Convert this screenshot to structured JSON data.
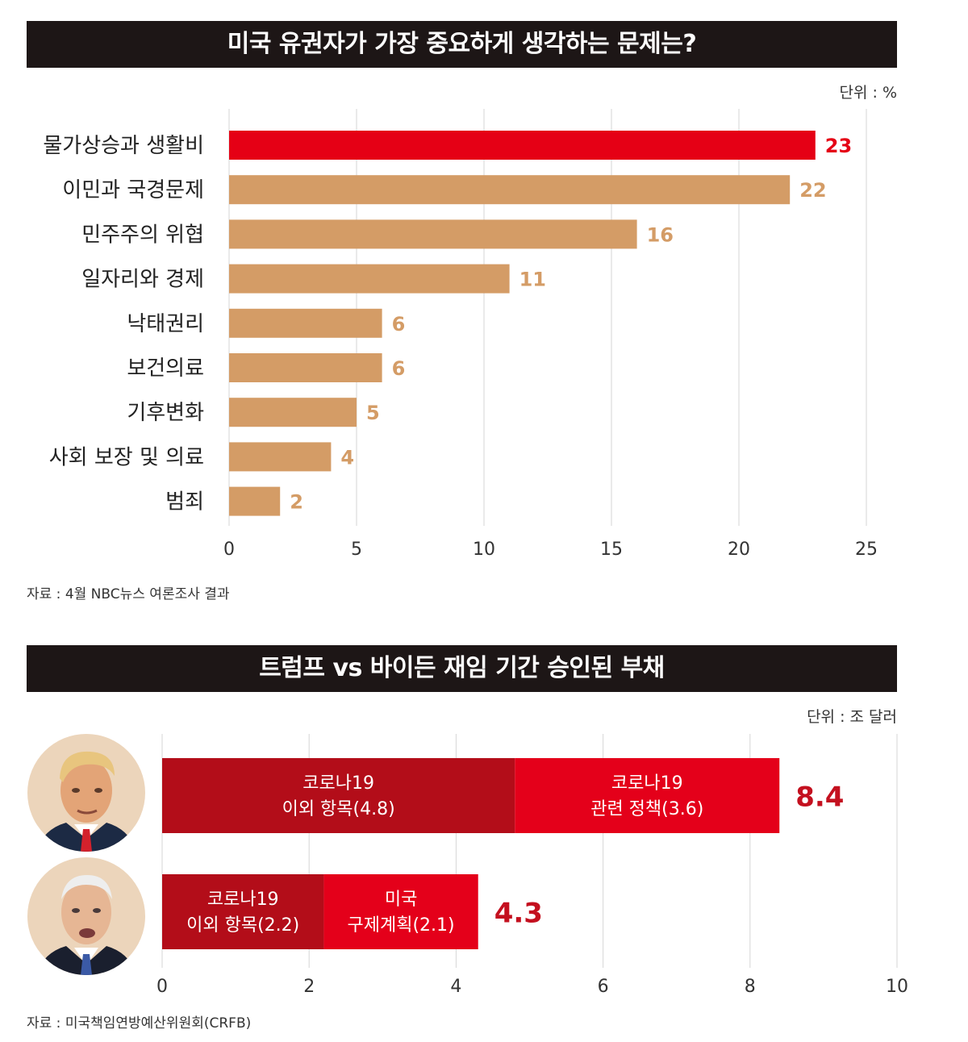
{
  "chart1": {
    "title": "미국 유권자가 가장 중요하게 생각하는 문제는?",
    "unit": "단위 : %",
    "source": "자료 : 4월 NBC뉴스 여론조사 결과"
  },
  "chart2": {
    "title": "트럼프 vs 바이든 재임 기간 승인된 부채",
    "unit": "단위 : 조 달러",
    "source": "자료 : 미국책임연방예산위원회(CRFB)"
  },
  "colors": {
    "highlight": "#e50015",
    "bar": "#d49c66",
    "dark_red": "#b30d19",
    "red": "#e4001a",
    "total_label": "#c4101f",
    "title_bg": "#1d1616"
  },
  "icons": [
    "trump-portrait",
    "biden-portrait"
  ],
  "chart_data": [
    {
      "type": "bar",
      "orientation": "horizontal",
      "categories": [
        "물가상승과 생활비",
        "이민과 국경문제",
        "민주주의 위협",
        "일자리와 경제",
        "낙태권리",
        "보건의료",
        "기후변화",
        "사회 보장 및 의료",
        "범죄"
      ],
      "values": [
        23,
        22,
        16,
        11,
        6,
        6,
        5,
        4,
        2
      ],
      "value_labels": [
        "23",
        "22",
        "16",
        "11",
        "6",
        "6",
        "5",
        "4",
        "2"
      ],
      "highlight_index": 0,
      "xlim": [
        0,
        25
      ],
      "xticks": [
        0,
        5,
        10,
        15,
        20,
        25
      ],
      "xtick_labels": [
        "0",
        "5",
        "10",
        "15",
        "20",
        "25"
      ],
      "grid": true
    },
    {
      "type": "bar",
      "orientation": "horizontal",
      "stacked": true,
      "categories": [
        "trump",
        "biden"
      ],
      "totals": [
        8.4,
        4.3
      ],
      "total_labels": [
        "8.4",
        "4.3"
      ],
      "segments": [
        [
          {
            "lines": [
              "코로나19",
              "이외 항목(4.8)"
            ],
            "value": 4.8,
            "color": "#b30d19"
          },
          {
            "lines": [
              "코로나19",
              "관련 정책(3.6)"
            ],
            "value": 3.6,
            "color": "#e4001a"
          }
        ],
        [
          {
            "lines": [
              "코로나19",
              "이외 항목(2.2)"
            ],
            "value": 2.2,
            "color": "#b30d19"
          },
          {
            "lines": [
              "미국",
              "구제계획(2.1)"
            ],
            "value": 2.1,
            "color": "#e4001a"
          }
        ]
      ],
      "xlim": [
        0,
        10
      ],
      "xticks": [
        0,
        2,
        4,
        6,
        8,
        10
      ],
      "xtick_labels": [
        "0",
        "2",
        "4",
        "6",
        "8",
        "10"
      ],
      "grid": true
    }
  ]
}
